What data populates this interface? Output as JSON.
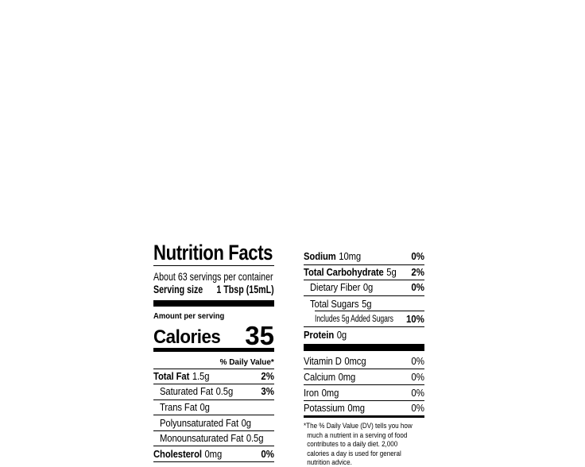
{
  "title": "Nutrition Facts",
  "servings_per_container": "About 63 servings per container",
  "serving_size": {
    "label": "Serving size",
    "value": "1 Tbsp (15mL)"
  },
  "amount_per_serving": "Amount per serving",
  "calories": {
    "label": "Calories",
    "value": "35"
  },
  "daily_value_header": "% Daily Value*",
  "left_rows": [
    {
      "name": "Total Fat",
      "amount": "1.5g",
      "dv": "2%"
    },
    {
      "name": "Saturated Fat",
      "amount": "0.5g",
      "dv": "3%"
    },
    {
      "name": "Trans Fat",
      "amount": "0g",
      "dv": ""
    },
    {
      "name": "Polyunsaturated Fat",
      "amount": "0g",
      "dv": ""
    },
    {
      "name": "Monounsaturated Fat",
      "amount": "0.5g",
      "dv": ""
    },
    {
      "name": "Cholesterol",
      "amount": "0mg",
      "dv": "0%"
    }
  ],
  "right_rows": [
    {
      "name": "Sodium",
      "amount": "10mg",
      "dv": "0%"
    },
    {
      "name": "Total Carbohydrate",
      "amount": "5g",
      "dv": "2%"
    },
    {
      "name": "Dietary Fiber",
      "amount": "0g",
      "dv": "0%"
    },
    {
      "name": "Total Sugars",
      "amount": "5g",
      "dv": ""
    },
    {
      "name": "Includes 5g Added Sugars",
      "amount": "",
      "dv": "10%"
    },
    {
      "name": "Protein",
      "amount": "0g",
      "dv": ""
    }
  ],
  "vitamin_rows": [
    {
      "name": "Vitamin D",
      "amount": "0mcg",
      "dv": "0%"
    },
    {
      "name": "Calcium",
      "amount": "0mg",
      "dv": "0%"
    },
    {
      "name": "Iron",
      "amount": "0mg",
      "dv": "0%"
    },
    {
      "name": "Potassium",
      "amount": "0mg",
      "dv": "0%"
    }
  ],
  "footnote_lines": [
    "*The % Daily Value (DV) tells you how",
    "much a nutrient in a serving of food",
    "contributes to a daily diet. 2,000",
    "calories a day is used for general",
    "nutrition advice."
  ],
  "colors": {
    "text": "#000000",
    "background": "#ffffff"
  }
}
